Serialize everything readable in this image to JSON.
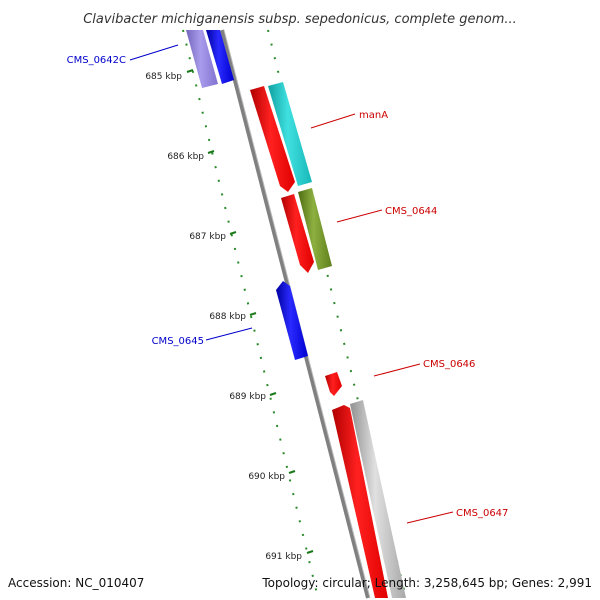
{
  "title": "Clavibacter michiganensis subsp. sepedonicus, complete genom...",
  "footer": {
    "accession": "Accession: NC_010407",
    "summary": "Topology: circular; Length: 3,258,645 bp; Genes: 2,991"
  },
  "ticks": [
    "685 kbp",
    "686 kbp",
    "687 kbp",
    "688 kbp",
    "689 kbp",
    "690 kbp",
    "691 kbp"
  ],
  "genes": [
    {
      "label": "CMS_0642C",
      "color": "#0000cc"
    },
    {
      "label": "manA",
      "color": "#cc0000"
    },
    {
      "label": "CMS_0644",
      "color": "#cc0000"
    },
    {
      "label": "CMS_0645",
      "color": "#0000cc"
    },
    {
      "label": "CMS_0646",
      "color": "#cc0000"
    },
    {
      "label": "CMS_0647",
      "color": "#cc0000"
    }
  ],
  "colors": {
    "backbone": "#777777",
    "tick_marks": "#1a7a1a",
    "red_feature": "#ff0000",
    "blue_feature": "#0000ee",
    "purple_feature": "#7a6ad0",
    "cyan_feature": "#22c8c8",
    "olive_feature": "#6b8e23",
    "gray_feature": "#b8b8b8"
  }
}
